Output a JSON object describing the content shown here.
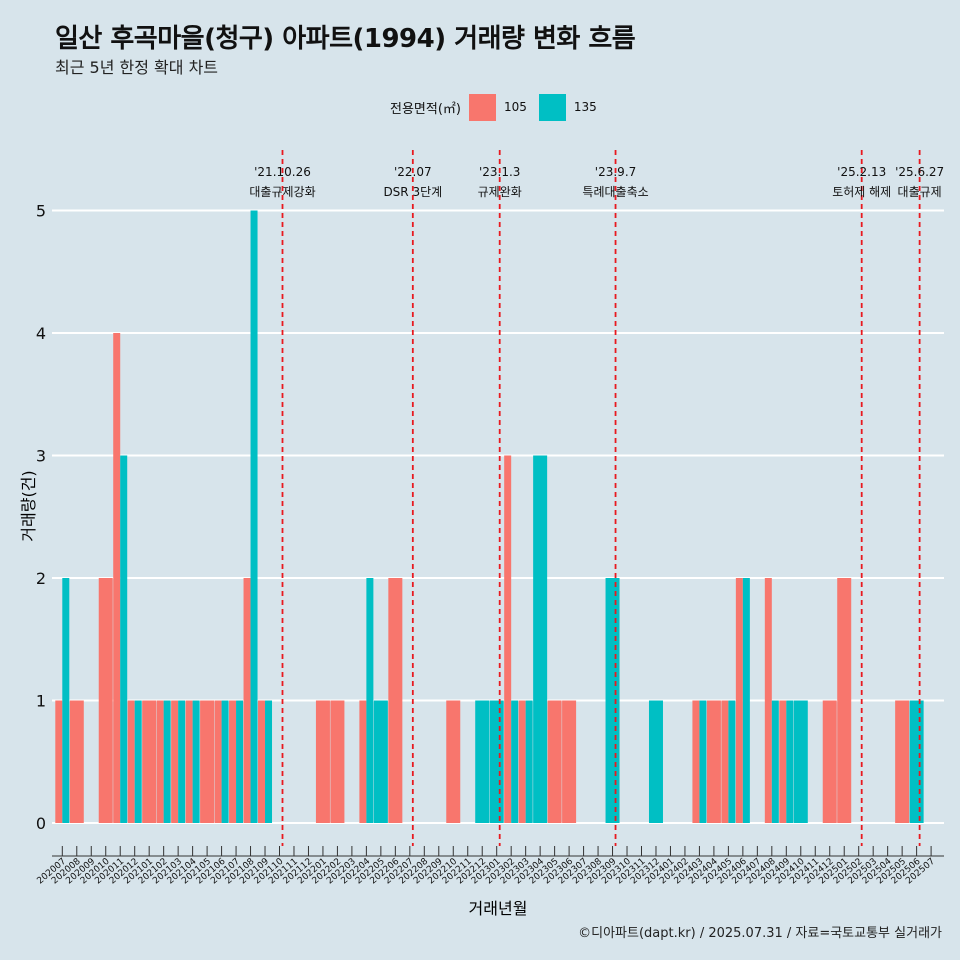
{
  "title": "일산 후곡마을(청구) 아파트(1994) 거래량 변화 흐름",
  "subtitle": "최근 5년 한정 확대 차트",
  "caption": "©디아파트(dapt.kr) / 2025.07.31 / 자료=국토교통부 실거래가",
  "legend": {
    "title": "전용면적(㎡)",
    "items": [
      {
        "label": "105",
        "color": "#f8766d"
      },
      {
        "label": "135",
        "color": "#00bfc4"
      }
    ]
  },
  "chart_data": {
    "type": "bar",
    "xlabel": "거래년월",
    "ylabel": "거래량(건)",
    "ylim": [
      0,
      5
    ],
    "yticks": [
      0,
      1,
      2,
      3,
      4,
      5
    ],
    "categories": [
      "202007",
      "202008",
      "202009",
      "202010",
      "202011",
      "202012",
      "202101",
      "202102",
      "202103",
      "202104",
      "202105",
      "202106",
      "202107",
      "202108",
      "202109",
      "202110",
      "202111",
      "202112",
      "202201",
      "202202",
      "202203",
      "202204",
      "202205",
      "202206",
      "202207",
      "202208",
      "202209",
      "202210",
      "202211",
      "202212",
      "202301",
      "202302",
      "202303",
      "202304",
      "202305",
      "202306",
      "202307",
      "202308",
      "202309",
      "202310",
      "202311",
      "202312",
      "202401",
      "202402",
      "202403",
      "202404",
      "202405",
      "202406",
      "202407",
      "202408",
      "202409",
      "202410",
      "202411",
      "202412",
      "202501",
      "202502",
      "202503",
      "202504",
      "202505",
      "202506",
      "202507"
    ],
    "series": [
      {
        "name": "105",
        "color": "#f8766d",
        "values": [
          1,
          1,
          0,
          2,
          4,
          1,
          1,
          1,
          1,
          1,
          1,
          1,
          1,
          2,
          1,
          0,
          0,
          0,
          1,
          1,
          0,
          1,
          0,
          2,
          0,
          0,
          0,
          1,
          0,
          0,
          0,
          3,
          1,
          0,
          1,
          1,
          0,
          0,
          0,
          0,
          0,
          0,
          0,
          0,
          1,
          1,
          1,
          2,
          0,
          2,
          1,
          0,
          0,
          1,
          2,
          0,
          0,
          0,
          1,
          0,
          0
        ]
      },
      {
        "name": "135",
        "color": "#00bfc4",
        "values": [
          2,
          0,
          0,
          0,
          3,
          1,
          0,
          1,
          1,
          1,
          0,
          1,
          1,
          5,
          1,
          0,
          0,
          0,
          0,
          0,
          0,
          2,
          1,
          0,
          0,
          0,
          0,
          0,
          0,
          1,
          1,
          1,
          1,
          3,
          0,
          0,
          0,
          0,
          2,
          0,
          0,
          1,
          0,
          0,
          1,
          0,
          1,
          2,
          0,
          1,
          1,
          1,
          0,
          0,
          0,
          0,
          0,
          0,
          0,
          1,
          0
        ]
      }
    ],
    "events": [
      {
        "month": "202110",
        "date": "'21.10.26",
        "label": "대출규제강화"
      },
      {
        "month": "202207",
        "date": "'22.07",
        "label": "DSR 3단계"
      },
      {
        "month": "202301",
        "date": "'23.1.3",
        "label": "규제완화"
      },
      {
        "month": "202309",
        "date": "'23.9.7",
        "label": "특례대출축소"
      },
      {
        "month": "202502",
        "date": "'25.2.13",
        "label": "토허제 해제"
      },
      {
        "month": "202506",
        "date": "'25.6.27",
        "label": "대출규제"
      }
    ]
  }
}
